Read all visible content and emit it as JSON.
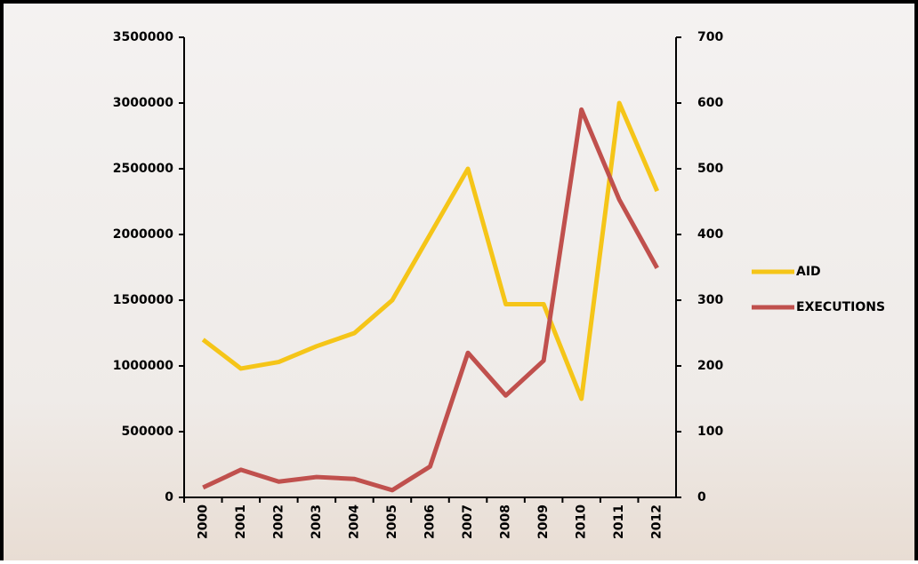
{
  "chart_data": {
    "type": "line",
    "categories": [
      "2000",
      "2001",
      "2002",
      "2003",
      "2004",
      "2005",
      "2006",
      "2007",
      "2008",
      "2009",
      "2010",
      "2011",
      "2012"
    ],
    "series": [
      {
        "name": "AID",
        "color": "#f5c518",
        "values": [
          1200000,
          980000,
          1030000,
          1150000,
          1250000,
          1500000,
          2000000,
          2500000,
          1470000,
          1470000,
          750000,
          3000000,
          2330000
        ]
      },
      {
        "name": "EXECUTIONS",
        "color": "#c0504d",
        "axis": "y2",
        "values": [
          15,
          42,
          24,
          31,
          28,
          11,
          47,
          220,
          155,
          208,
          590,
          453,
          349
        ]
      }
    ],
    "ylim": [
      0,
      3500000
    ],
    "yticks": [
      0,
      500000,
      1000000,
      1500000,
      2000000,
      2500000,
      3000000,
      3500000
    ],
    "y2lim": [
      0,
      700
    ],
    "y2ticks": [
      0,
      100,
      200,
      300,
      400,
      500,
      600,
      700
    ],
    "legend": "right"
  }
}
